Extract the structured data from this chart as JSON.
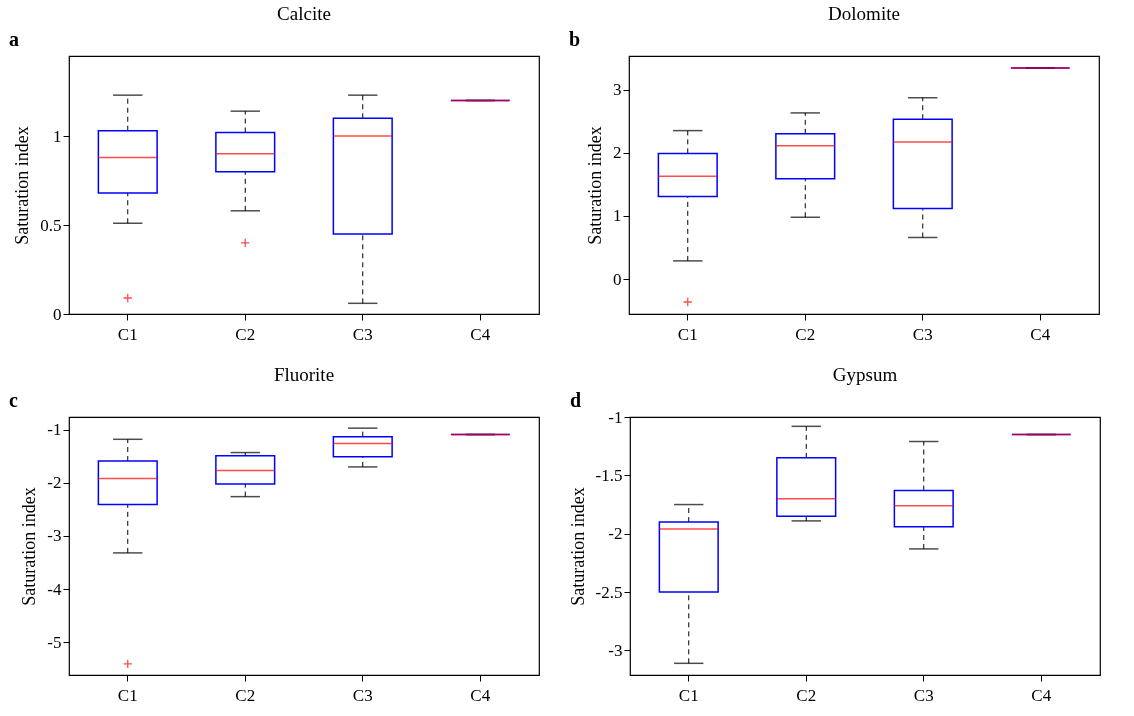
{
  "chart_data": [
    {
      "type": "box",
      "title": "Calcite",
      "ylabel": "Saturation index",
      "annotations": [
        "a"
      ],
      "categories": [
        "C1",
        "C2",
        "C3",
        "C4"
      ],
      "ylim": [
        0,
        1.45
      ],
      "yticks": [
        0,
        0.5,
        1
      ],
      "boxes": [
        {
          "low": 0.51,
          "q1": 0.68,
          "median": 0.88,
          "q3": 1.03,
          "high": 1.23,
          "outliers": [
            0.09
          ]
        },
        {
          "low": 0.58,
          "q1": 0.8,
          "median": 0.9,
          "q3": 1.02,
          "high": 1.14,
          "outliers": [
            0.4
          ]
        },
        {
          "low": 0.06,
          "q1": 0.45,
          "median": 1.0,
          "q3": 1.1,
          "high": 1.23
        },
        {
          "low": 1.2,
          "q1": 1.2,
          "median": 1.2,
          "q3": 1.2,
          "high": 1.2
        }
      ]
    },
    {
      "type": "box",
      "title": "Dolomite",
      "ylabel": "Saturation index",
      "annotations": [
        "b"
      ],
      "categories": [
        "C1",
        "C2",
        "C3",
        "C4"
      ],
      "ylim": [
        -0.55,
        3.53
      ],
      "yticks": [
        0,
        1,
        2,
        3
      ],
      "boxes": [
        {
          "low": 0.29,
          "q1": 1.31,
          "median": 1.63,
          "q3": 1.99,
          "high": 2.35,
          "outliers": [
            -0.36
          ]
        },
        {
          "low": 0.98,
          "q1": 1.59,
          "median": 2.11,
          "q3": 2.3,
          "high": 2.63
        },
        {
          "low": 0.66,
          "q1": 1.12,
          "median": 2.17,
          "q3": 2.53,
          "high": 2.87
        },
        {
          "low": 3.34,
          "q1": 3.34,
          "median": 3.34,
          "q3": 3.34,
          "high": 3.34
        }
      ]
    },
    {
      "type": "box",
      "title": "Fluorite",
      "ylabel": "Saturation index",
      "annotations": [
        "c"
      ],
      "categories": [
        "C1",
        "C2",
        "C3",
        "C4"
      ],
      "ylim": [
        -5.62,
        -0.76
      ],
      "yticks": [
        -5,
        -4,
        -3,
        -2,
        -1
      ],
      "boxes": [
        {
          "low": -3.32,
          "q1": -2.41,
          "median": -1.92,
          "q3": -1.59,
          "high": -1.18,
          "outliers": [
            -5.41
          ]
        },
        {
          "low": -2.26,
          "q1": -2.02,
          "median": -1.77,
          "q3": -1.49,
          "high": -1.43
        },
        {
          "low": -1.7,
          "q1": -1.51,
          "median": -1.26,
          "q3": -1.13,
          "high": -0.97
        },
        {
          "low": -1.09,
          "q1": -1.09,
          "median": -1.09,
          "q3": -1.09,
          "high": -1.09
        }
      ]
    },
    {
      "type": "box",
      "title": "Gypsum",
      "ylabel": "Saturation index",
      "annotations": [
        "d"
      ],
      "categories": [
        "C1",
        "C2",
        "C3",
        "C4"
      ],
      "ylim": [
        -3.21,
        -1
      ],
      "yticks": [
        -3,
        -2.5,
        -2,
        -1.5,
        -1
      ],
      "boxes": [
        {
          "low": -3.11,
          "q1": -2.5,
          "median": -1.96,
          "q3": -1.9,
          "high": -1.75
        },
        {
          "low": -1.89,
          "q1": -1.85,
          "median": -1.7,
          "q3": -1.35,
          "high": -1.08
        },
        {
          "low": -2.13,
          "q1": -1.94,
          "median": -1.76,
          "q3": -1.63,
          "high": -1.21
        },
        {
          "low": -1.15,
          "q1": -1.15,
          "median": -1.15,
          "q3": -1.15,
          "high": -1.15
        }
      ]
    }
  ]
}
